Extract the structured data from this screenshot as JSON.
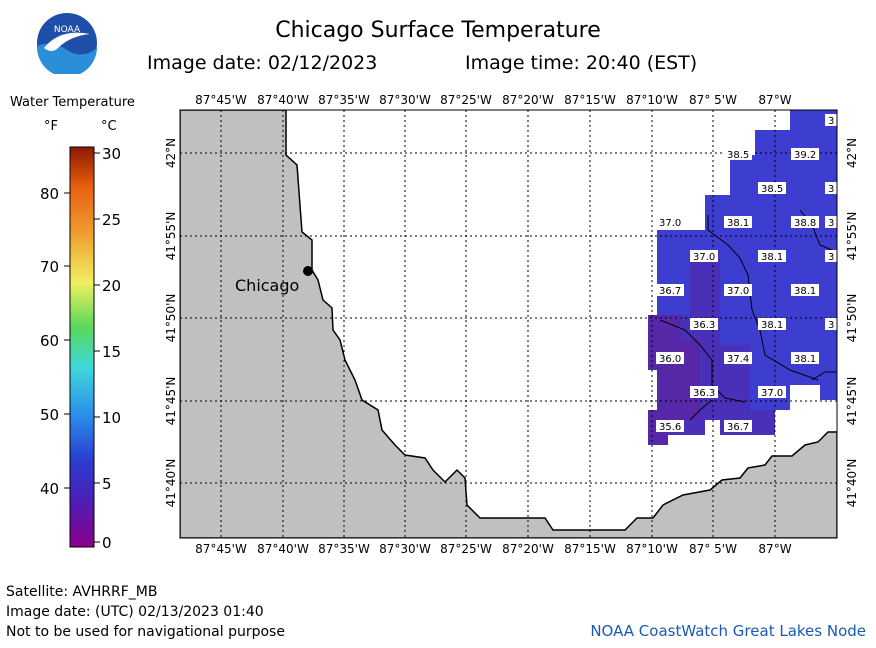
{
  "header": {
    "title": "Chicago Surface Temperature",
    "image_date": "Image date: 02/12/2023",
    "image_time": "Image time: 20:40 (EST)"
  },
  "logo": {
    "text": "NOAA",
    "colors": {
      "sky": "#1f4fa8",
      "water": "#2a8fd8",
      "bird": "#ffffff"
    }
  },
  "legend": {
    "title": "Water Temperature",
    "unit_f": "°F",
    "unit_c": "°C",
    "f_ticks": [
      "80",
      "70",
      "60",
      "50",
      "40"
    ],
    "c_ticks": [
      "30",
      "25",
      "20",
      "15",
      "10",
      "5",
      "0"
    ]
  },
  "map": {
    "lon_labels": [
      "87°45'W",
      "87°40'W",
      "87°35'W",
      "87°30'W",
      "87°25'W",
      "87°20'W",
      "87°15'W",
      "87°10'W",
      "87° 5'W",
      "87°W"
    ],
    "lat_labels": [
      "42°N",
      "41°55'N",
      "41°50'N",
      "41°45'N",
      "41°40'N"
    ],
    "city": "Chicago",
    "colors": {
      "land": "#c0c0c0",
      "lake_nodata": "#ffffff",
      "water_38": "#3d3ed0",
      "water_37": "#4a30b8",
      "water_36": "#5628a8"
    },
    "temperatures": [
      {
        "label": "3",
        "tag": "r1c1"
      },
      {
        "label": "38.5",
        "tag": "r2c1"
      },
      {
        "label": "39.2",
        "tag": "r2c2"
      },
      {
        "label": "38.5",
        "tag": "r3c1"
      },
      {
        "label": "3",
        "tag": "r3c2"
      },
      {
        "label": "37.0",
        "tag": "r4c1"
      },
      {
        "label": "38.1",
        "tag": "r4c2"
      },
      {
        "label": "38.8",
        "tag": "r4c3"
      },
      {
        "label": "3",
        "tag": "r4c4"
      },
      {
        "label": "37.0",
        "tag": "r5c1"
      },
      {
        "label": "38.1",
        "tag": "r5c2"
      },
      {
        "label": "3",
        "tag": "r5c3"
      },
      {
        "label": "36.7",
        "tag": "r6c1"
      },
      {
        "label": "37.0",
        "tag": "r6c2"
      },
      {
        "label": "38.1",
        "tag": "r6c3"
      },
      {
        "label": "36.3",
        "tag": "r7c1"
      },
      {
        "label": "38.1",
        "tag": "r7c2"
      },
      {
        "label": "3",
        "tag": "r7c3"
      },
      {
        "label": "36.0",
        "tag": "r8c1"
      },
      {
        "label": "37.4",
        "tag": "r8c2"
      },
      {
        "label": "38.1",
        "tag": "r8c3"
      },
      {
        "label": "36.3",
        "tag": "r9c1"
      },
      {
        "label": "37.0",
        "tag": "r9c2"
      },
      {
        "label": "35.6",
        "tag": "r10c1"
      },
      {
        "label": "36.7",
        "tag": "r10c2"
      }
    ]
  },
  "footer": {
    "satellite": "Satellite: AVHRRF_MB",
    "utc_date": "Image date: (UTC) 02/13/2023  01:40",
    "disclaimer": "Not to be used for navigational purpose",
    "credit": "NOAA CoastWatch Great Lakes Node"
  }
}
